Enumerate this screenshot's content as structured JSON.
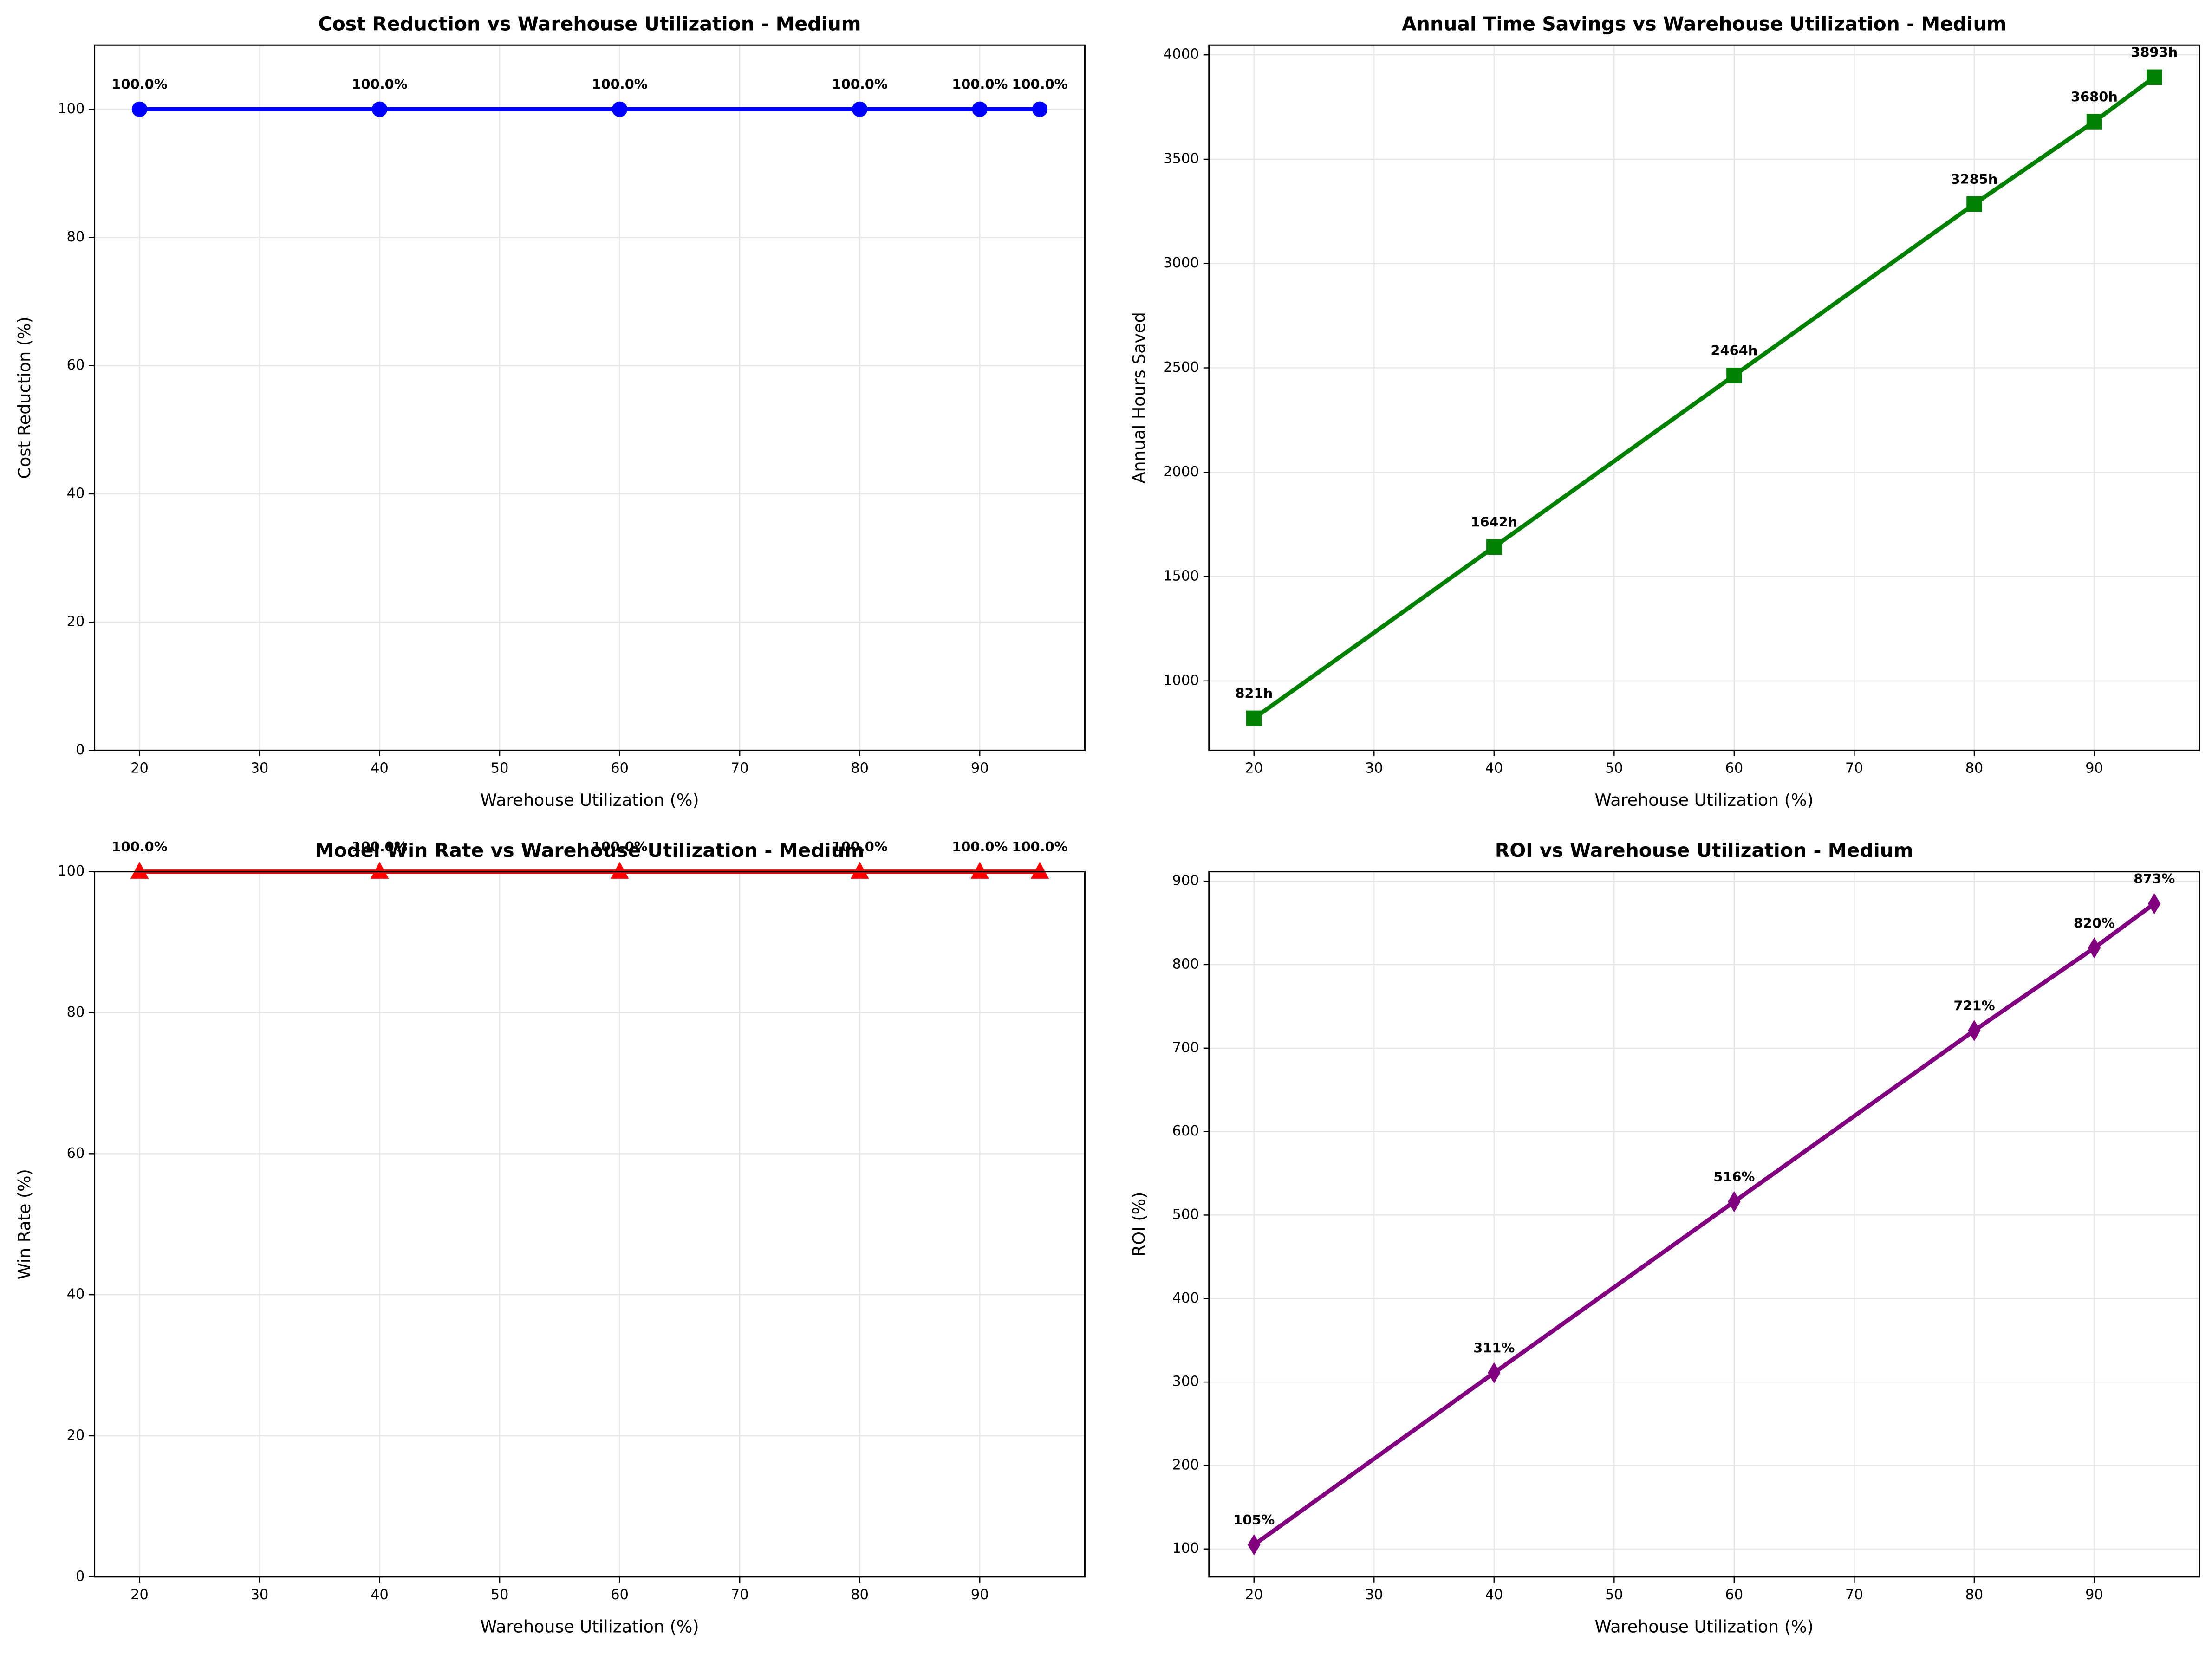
{
  "chart_data": [
    {
      "type": "line",
      "title": "Cost Reduction vs Warehouse Utilization - Medium",
      "x_label": "Warehouse Utilization (%)",
      "y_label": "Cost Reduction (%)",
      "x": [
        20,
        40,
        60,
        80,
        90,
        95
      ],
      "values": [
        100,
        100,
        100,
        100,
        100,
        100
      ],
      "value_labels": [
        "100.0%",
        "100.0%",
        "100.0%",
        "100.0%",
        "100.0%",
        "100.0%"
      ],
      "color": "#0000ff",
      "marker": "circle",
      "xlim": [
        16.25,
        98.75
      ],
      "xticks": [
        20,
        30,
        40,
        50,
        60,
        70,
        80,
        90
      ],
      "ylim": [
        0,
        110
      ],
      "yticks": [
        0,
        20,
        40,
        60,
        80,
        100
      ],
      "grid": true
    },
    {
      "type": "line",
      "title": "Annual Time Savings vs Warehouse Utilization - Medium",
      "x_label": "Warehouse Utilization (%)",
      "y_label": "Annual Hours Saved",
      "x": [
        20,
        40,
        60,
        80,
        90,
        95
      ],
      "values": [
        821,
        1642,
        2464,
        3285,
        3680,
        3893
      ],
      "value_labels": [
        "821h",
        "1642h",
        "2464h",
        "3285h",
        "3680h",
        "3893h"
      ],
      "color": "#008000",
      "marker": "square",
      "xlim": [
        16.25,
        98.75
      ],
      "xticks": [
        20,
        30,
        40,
        50,
        60,
        70,
        80,
        90
      ],
      "ylim": [
        667.4,
        4046.6
      ],
      "yticks": [
        1000,
        1500,
        2000,
        2500,
        3000,
        3500,
        4000
      ],
      "grid": true
    },
    {
      "type": "line",
      "title": "Model Win Rate vs Warehouse Utilization - Medium",
      "x_label": "Warehouse Utilization (%)",
      "y_label": "Win Rate (%)",
      "x": [
        20,
        40,
        60,
        80,
        90,
        95
      ],
      "values": [
        100,
        100,
        100,
        100,
        100,
        100
      ],
      "value_labels": [
        "100.0%",
        "100.0%",
        "100.0%",
        "100.0%",
        "100.0%",
        "100.0%"
      ],
      "color": "#ff0000",
      "marker": "triangle",
      "xlim": [
        16.25,
        98.75
      ],
      "xticks": [
        20,
        30,
        40,
        50,
        60,
        70,
        80,
        90
      ],
      "ylim": [
        0,
        100
      ],
      "yticks": [
        0,
        20,
        40,
        60,
        80,
        100
      ],
      "grid": true
    },
    {
      "type": "line",
      "title": "ROI vs Warehouse Utilization - Medium",
      "x_label": "Warehouse Utilization (%)",
      "y_label": "ROI (%)",
      "x": [
        20,
        40,
        60,
        80,
        90,
        95
      ],
      "values": [
        105,
        311,
        516,
        721,
        820,
        873
      ],
      "value_labels": [
        "105%",
        "311%",
        "516%",
        "721%",
        "820%",
        "873%"
      ],
      "color": "#800080",
      "marker": "diamond",
      "xlim": [
        16.25,
        98.75
      ],
      "xticks": [
        20,
        30,
        40,
        50,
        60,
        70,
        80,
        90
      ],
      "ylim": [
        66.6,
        911.4
      ],
      "yticks": [
        100,
        200,
        300,
        400,
        500,
        600,
        700,
        800,
        900
      ],
      "grid": true
    }
  ]
}
